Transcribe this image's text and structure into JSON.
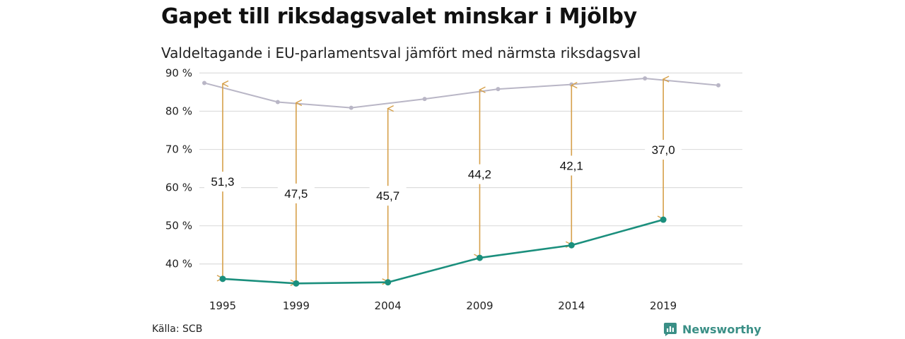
{
  "title": "Gapet till riksdagsvalet minskar i Mjölby",
  "subtitle": "Valdeltagande i EU-parlamentsval jämfört med närmsta riksdagsval",
  "source": "Källa: SCB",
  "brand": {
    "name": "Newsworthy",
    "icon": "newsworthy-logo-icon",
    "color": "#3a8f86"
  },
  "chart_data": {
    "type": "line",
    "title": "Gapet till riksdagsvalet minskar i Mjölby",
    "subtitle": "Valdeltagande i EU-parlamentsval jämfört med närmsta riksdagsval",
    "xlim": [
      1994,
      2023
    ],
    "ylim": [
      32,
      91
    ],
    "y_ticks": [
      40,
      50,
      60,
      70,
      80,
      90
    ],
    "y_tick_labels": [
      "40 %",
      "50 %",
      "60 %",
      "70 %",
      "80 %",
      "90 %"
    ],
    "x_ticks": [
      1995,
      1999,
      2004,
      2009,
      2014,
      2019
    ],
    "x_tick_labels": [
      "1995",
      "1999",
      "2004",
      "2009",
      "2014",
      "2019"
    ],
    "grid": true,
    "colors": {
      "riksdag": "#b9b6c6",
      "eu": "#1b8f7d",
      "gap": "#d6a04a",
      "grid": "#dddddd"
    },
    "series": [
      {
        "key": "riksdag",
        "x": [
          1994,
          1998,
          2002,
          2006,
          2010,
          2014,
          2018,
          2022
        ],
        "y": [
          87.4,
          82.4,
          80.9,
          83.2,
          85.8,
          87.0,
          88.6,
          86.8
        ]
      },
      {
        "key": "eu",
        "x": [
          1995,
          1999,
          2004,
          2009,
          2014,
          2019
        ],
        "y": [
          36.1,
          34.9,
          35.2,
          41.6,
          44.9,
          51.6
        ]
      }
    ],
    "gaps": [
      {
        "year": 1995,
        "from": 36.1,
        "to": 87.4,
        "label": "51,3"
      },
      {
        "year": 1999,
        "from": 34.9,
        "to": 82.4,
        "label": "47,5"
      },
      {
        "year": 2004,
        "from": 35.2,
        "to": 80.9,
        "label": "45,7"
      },
      {
        "year": 2009,
        "from": 41.6,
        "to": 85.8,
        "label": "44,2"
      },
      {
        "year": 2014,
        "from": 44.9,
        "to": 87.0,
        "label": "42,1"
      },
      {
        "year": 2019,
        "from": 51.6,
        "to": 88.6,
        "label": "37,0"
      }
    ]
  }
}
